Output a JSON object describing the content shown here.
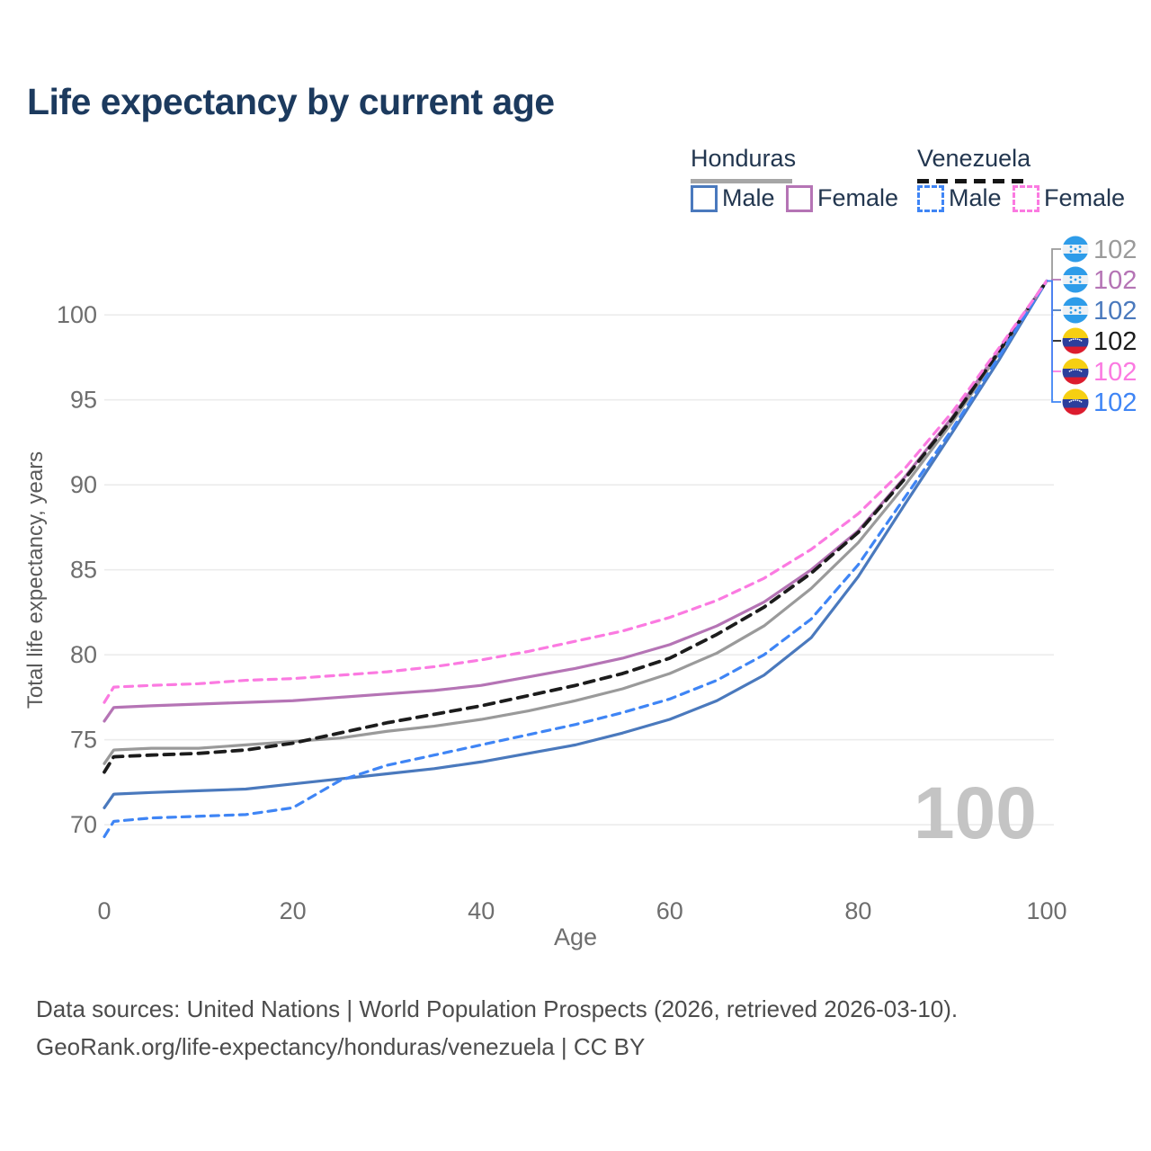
{
  "title": "Life expectancy by current age",
  "legend": {
    "groups": [
      {
        "country": "Honduras",
        "line_style": "solid",
        "underline_color": "#a6a6a6",
        "items": [
          {
            "label": "Male",
            "color": "#4a79bd",
            "dashed": false
          },
          {
            "label": "Female",
            "color": "#b574b5",
            "dashed": false
          }
        ]
      },
      {
        "country": "Venezuela",
        "line_style": "dashed",
        "underline_color": "#151515",
        "items": [
          {
            "label": "Male",
            "color": "#3f85f5",
            "dashed": true
          },
          {
            "label": "Female",
            "color": "#fb7ae1",
            "dashed": true
          }
        ]
      }
    ]
  },
  "watermark": "100",
  "footer": {
    "line1": "Data sources: United Nations | World Population Prospects (2026, retrieved 2026-03-10).",
    "line2": "GeoRank.org/life-expectancy/honduras/venezuela | CC BY"
  },
  "flag_colors": {
    "honduras": {
      "base": "#edf1f5",
      "band": "#2e9ce9",
      "star": "#2e9ce9"
    },
    "venezuela": {
      "yellow": "#f6cf12",
      "blue": "#2c3e9c",
      "red": "#dc1c2e",
      "star": "#ffffff"
    }
  },
  "chart_data": {
    "type": "line",
    "title": "Life expectancy by current age",
    "xlabel": "Age",
    "ylabel": "Total life expectancy, years",
    "x": [
      0,
      1,
      5,
      10,
      15,
      20,
      25,
      30,
      35,
      40,
      45,
      50,
      55,
      60,
      65,
      70,
      75,
      80,
      85,
      90,
      95,
      100
    ],
    "xticks": [
      0,
      20,
      40,
      60,
      80,
      100
    ],
    "yticks": [
      70,
      75,
      80,
      85,
      90,
      95,
      100
    ],
    "xlim": [
      0,
      100
    ],
    "ylim": [
      68,
      103
    ],
    "grid": true,
    "legend_position": "top-right",
    "axis_text_color": "#6e6e6e",
    "grid_color": "#ececec",
    "series": [
      {
        "name": "Honduras Total",
        "country": "honduras",
        "color": "#9a9a9a",
        "dashed": false,
        "width": 3.2,
        "end_label": "102",
        "values": [
          73.6,
          74.4,
          74.5,
          74.5,
          74.7,
          74.9,
          75.1,
          75.5,
          75.8,
          76.2,
          76.7,
          77.3,
          78.0,
          78.9,
          80.1,
          81.7,
          83.9,
          86.6,
          90.0,
          93.7,
          97.8,
          102
        ]
      },
      {
        "name": "Honduras Female",
        "country": "honduras",
        "color": "#b574b5",
        "dashed": false,
        "width": 3.2,
        "end_label": "102",
        "values": [
          76.1,
          76.9,
          77.0,
          77.1,
          77.2,
          77.3,
          77.5,
          77.7,
          77.9,
          78.2,
          78.7,
          79.2,
          79.8,
          80.6,
          81.7,
          83.1,
          85.0,
          87.3,
          90.5,
          94.0,
          98.0,
          102
        ]
      },
      {
        "name": "Honduras Male",
        "country": "honduras",
        "color": "#4a79bd",
        "dashed": false,
        "width": 3.2,
        "end_label": "102",
        "values": [
          71.0,
          71.8,
          71.9,
          72.0,
          72.1,
          72.4,
          72.7,
          73.0,
          73.3,
          73.7,
          74.2,
          74.7,
          75.4,
          76.2,
          77.3,
          78.8,
          81.0,
          84.6,
          88.9,
          93.1,
          97.4,
          102
        ]
      },
      {
        "name": "Venezuela Total",
        "country": "venezuela",
        "color": "#1c1c1c",
        "dashed": true,
        "width": 3.8,
        "end_label": "102",
        "values": [
          73.1,
          74.0,
          74.1,
          74.2,
          74.4,
          74.8,
          75.4,
          76.0,
          76.5,
          77.0,
          77.6,
          78.2,
          78.9,
          79.8,
          81.2,
          82.8,
          84.8,
          87.2,
          90.4,
          93.9,
          97.9,
          102
        ]
      },
      {
        "name": "Venezuela Female",
        "country": "venezuela",
        "color": "#fb7ae1",
        "dashed": true,
        "width": 3.2,
        "end_label": "102",
        "values": [
          77.2,
          78.1,
          78.2,
          78.3,
          78.5,
          78.6,
          78.8,
          79.0,
          79.3,
          79.7,
          80.2,
          80.8,
          81.4,
          82.2,
          83.2,
          84.5,
          86.2,
          88.3,
          91.0,
          94.3,
          98.1,
          102
        ]
      },
      {
        "name": "Venezuela Male",
        "country": "venezuela",
        "color": "#3f85f5",
        "dashed": true,
        "width": 3.2,
        "end_label": "102",
        "values": [
          69.3,
          70.2,
          70.4,
          70.5,
          70.6,
          71.0,
          72.6,
          73.5,
          74.1,
          74.7,
          75.3,
          75.9,
          76.6,
          77.4,
          78.5,
          80.0,
          82.1,
          85.3,
          89.3,
          93.3,
          97.6,
          102
        ]
      }
    ]
  }
}
